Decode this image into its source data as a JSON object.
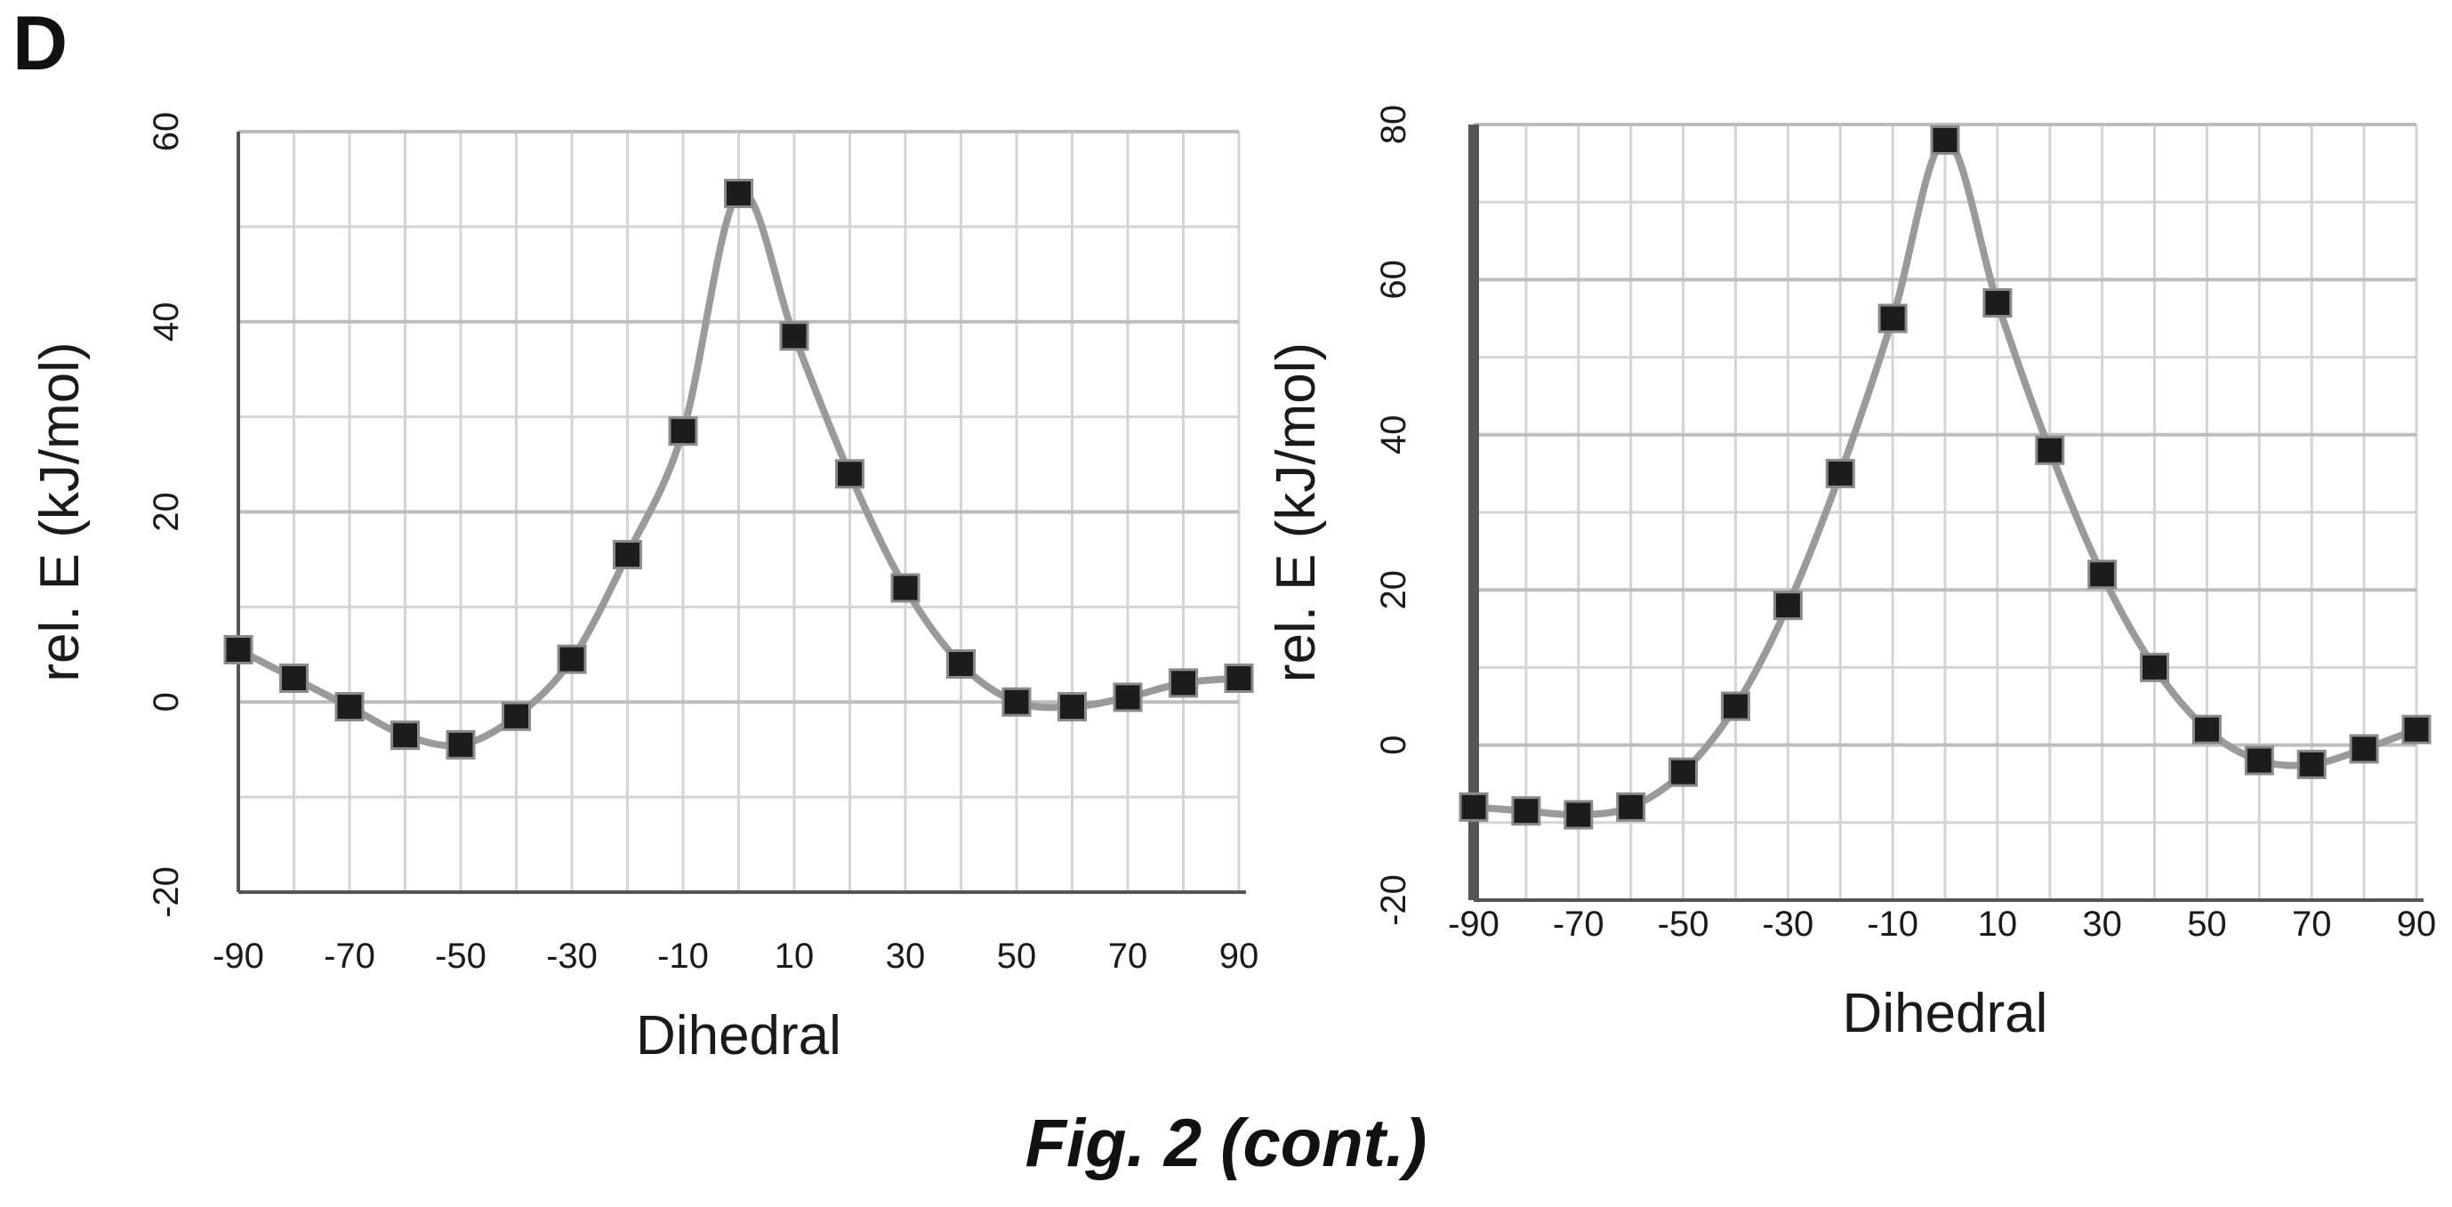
{
  "panel_label": "D",
  "caption": "Fig. 2 (cont.)",
  "chart_data": [
    {
      "type": "scatter",
      "title": "",
      "xlabel": "Dihedral",
      "ylabel": "rel. E (kJ/mol)",
      "xlim": [
        -90,
        90
      ],
      "ylim": [
        -20,
        60
      ],
      "x_ticks": [
        "-90",
        "-70",
        "-50",
        "-30",
        "-10",
        "10",
        "30",
        "50",
        "70",
        "90"
      ],
      "y_ticks": [
        "-20",
        "0",
        "20",
        "40",
        "60"
      ],
      "grid": true,
      "legend": "none",
      "marker": "square",
      "line": "smooth",
      "series": [
        {
          "x": [
            -90,
            -80,
            -70,
            -60,
            -50,
            -40,
            -30,
            -20,
            -10,
            0,
            10,
            20,
            30,
            40,
            50,
            60,
            70,
            80,
            90
          ],
          "y": [
            5.5,
            2.5,
            -0.5,
            -3.5,
            -4.5,
            -1.5,
            4.5,
            15.5,
            28.5,
            53.5,
            38.5,
            24.0,
            12.0,
            4.0,
            0.0,
            -0.5,
            0.5,
            2.0,
            2.5
          ]
        }
      ]
    },
    {
      "type": "scatter",
      "title": "",
      "xlabel": "Dihedral",
      "ylabel": "rel. E (kJ/mol)",
      "xlim": [
        -90,
        90
      ],
      "ylim": [
        -20,
        80
      ],
      "x_ticks": [
        "-90",
        "-70",
        "-50",
        "-30",
        "-10",
        "10",
        "30",
        "50",
        "70",
        "90"
      ],
      "y_ticks": [
        "-20",
        "0",
        "20",
        "40",
        "60",
        "80"
      ],
      "grid": true,
      "legend": "none",
      "marker": "square",
      "line": "smooth",
      "series": [
        {
          "x": [
            -90,
            -80,
            -70,
            -60,
            -50,
            -40,
            -30,
            -20,
            -10,
            0,
            10,
            20,
            30,
            40,
            50,
            60,
            70,
            80,
            90
          ],
          "y": [
            -8.0,
            -8.5,
            -9.0,
            -8.0,
            -3.5,
            5.0,
            18.0,
            35.0,
            55.0,
            78.0,
            57.0,
            38.0,
            22.0,
            10.0,
            2.0,
            -2.0,
            -2.5,
            -0.5,
            2.0
          ]
        }
      ]
    }
  ],
  "colors": {
    "grid": "#d4d4d4",
    "line": "#9a9a9a",
    "marker": "#1c1c1c",
    "axis": "#555555",
    "text": "#1a1a1a"
  }
}
